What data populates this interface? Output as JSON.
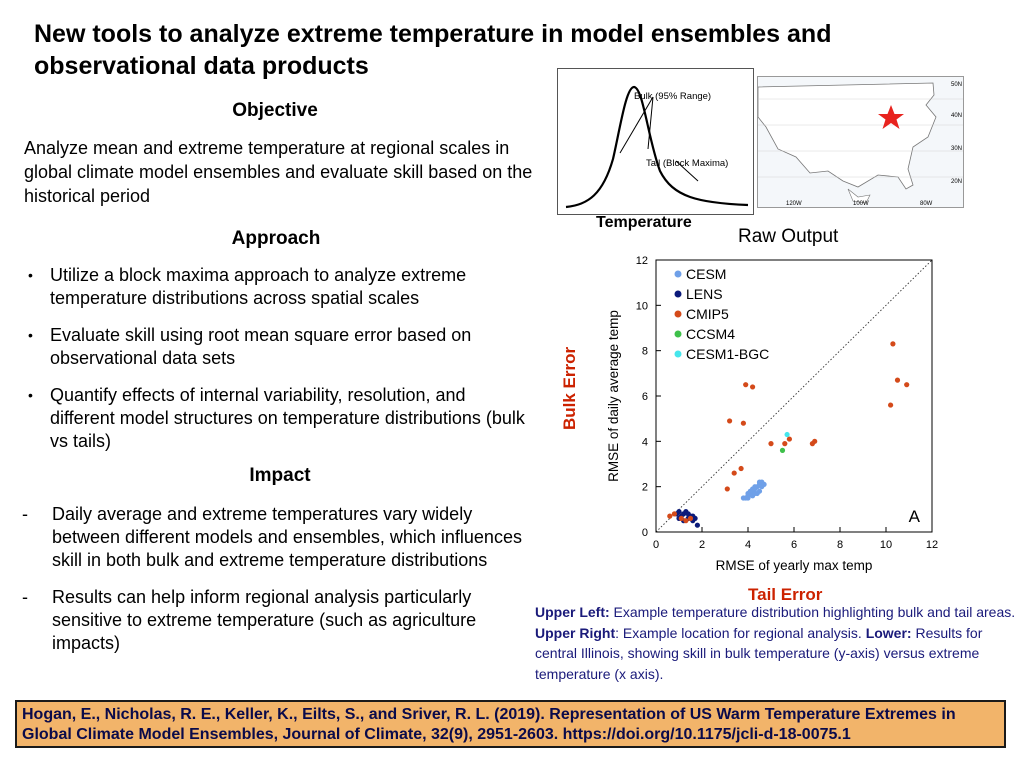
{
  "title": "New tools to analyze extreme temperature in model ensembles and observational data products",
  "objective": {
    "heading": "Objective",
    "text": "Analyze mean and extreme temperature at regional scales in global climate model ensembles and evaluate skill based on the historical period"
  },
  "approach": {
    "heading": "Approach",
    "bullets": [
      "Utilize a block maxima approach to analyze  extreme temperature distributions across spatial scales",
      "Evaluate skill using root mean square error based on observational data sets",
      "Quantify effects of internal variability, resolution, and different model structures on temperature distributions (bulk vs tails)"
    ]
  },
  "impact": {
    "heading": "Impact",
    "items": [
      "Daily average and extreme temperatures vary widely between different models and ensembles, which influences skill in both bulk and extreme temperature distributions",
      "Results can help inform regional analysis particularly sensitive to extreme temperature (such as agriculture impacts)"
    ]
  },
  "figure": {
    "distribution": {
      "label_bulk": "Bulk (95% Range)",
      "label_tail": "Tail (Block Maxima)",
      "xlabel": "Temperature"
    },
    "map": {
      "lat_labels": [
        "50N",
        "40N",
        "30N",
        "20N"
      ],
      "lon_labels": [
        "120W",
        "100W",
        "80W"
      ],
      "marker_color": "#e8231e"
    },
    "raw_output_label": "Raw Output",
    "bulk_error_label": "Bulk Error",
    "tail_error_label": "Tail Error",
    "panel_letter": "A"
  },
  "chart_data": {
    "type": "scatter",
    "xlabel": "RMSE of yearly max temp",
    "ylabel": "RMSE of daily average temp",
    "xlim": [
      0,
      12
    ],
    "ylim": [
      0,
      12
    ],
    "xticks": [
      0,
      2,
      4,
      6,
      8,
      10,
      12
    ],
    "yticks": [
      0,
      2,
      4,
      6,
      8,
      10,
      12
    ],
    "legend_position": "top-left",
    "reference_line": "1:1 dotted",
    "series": [
      {
        "name": "CESM",
        "color": "#6fa0e8",
        "points": [
          [
            3.9,
            1.5
          ],
          [
            4.0,
            1.6
          ],
          [
            4.1,
            1.7
          ],
          [
            4.2,
            1.8
          ],
          [
            4.3,
            1.9
          ],
          [
            4.4,
            2.0
          ],
          [
            4.5,
            2.1
          ],
          [
            4.6,
            2.2
          ],
          [
            4.0,
            1.5
          ],
          [
            4.2,
            1.6
          ],
          [
            4.3,
            1.7
          ],
          [
            4.5,
            1.8
          ],
          [
            4.6,
            2.0
          ],
          [
            4.1,
            1.8
          ],
          [
            4.4,
            1.7
          ],
          [
            3.8,
            1.5
          ],
          [
            4.7,
            2.1
          ],
          [
            4.5,
            2.2
          ],
          [
            4.3,
            2.0
          ],
          [
            4.2,
            1.9
          ],
          [
            4.0,
            1.7
          ]
        ]
      },
      {
        "name": "LENS",
        "color": "#0b1a7a",
        "points": [
          [
            0.9,
            0.8
          ],
          [
            1.0,
            0.9
          ],
          [
            1.1,
            0.7
          ],
          [
            1.2,
            0.8
          ],
          [
            1.3,
            0.9
          ],
          [
            1.4,
            0.6
          ],
          [
            1.5,
            0.7
          ],
          [
            1.6,
            0.5
          ],
          [
            1.7,
            0.6
          ],
          [
            1.8,
            0.3
          ],
          [
            1.0,
            0.6
          ],
          [
            1.2,
            0.5
          ],
          [
            1.4,
            0.8
          ],
          [
            1.6,
            0.7
          ]
        ]
      },
      {
        "name": "CMIP5",
        "color": "#d44a1a",
        "points": [
          [
            0.6,
            0.7
          ],
          [
            0.8,
            0.8
          ],
          [
            1.1,
            0.6
          ],
          [
            1.3,
            0.5
          ],
          [
            1.5,
            0.6
          ],
          [
            3.1,
            1.9
          ],
          [
            3.4,
            2.6
          ],
          [
            3.7,
            2.8
          ],
          [
            3.2,
            4.9
          ],
          [
            3.8,
            4.8
          ],
          [
            3.9,
            6.5
          ],
          [
            4.2,
            6.4
          ],
          [
            5.0,
            3.9
          ],
          [
            5.6,
            3.9
          ],
          [
            6.8,
            3.9
          ],
          [
            6.9,
            4.0
          ],
          [
            5.8,
            4.1
          ],
          [
            10.2,
            5.6
          ],
          [
            10.5,
            6.7
          ],
          [
            10.9,
            6.5
          ],
          [
            10.3,
            8.3
          ]
        ]
      },
      {
        "name": "CCSM4",
        "color": "#3ec04a",
        "points": [
          [
            5.5,
            3.6
          ]
        ]
      },
      {
        "name": "CESM1-BGC",
        "color": "#46e6ec",
        "points": [
          [
            5.7,
            4.3
          ]
        ]
      }
    ]
  },
  "caption": {
    "ul_label": "Upper Left:",
    "ul_text": " Example temperature distribution highlighting bulk and tail areas. ",
    "ur_label": "Upper Right",
    "ur_text": ": Example location for regional analysis. ",
    "lo_label": "Lower:",
    "lo_text": " Results for central Illinois, showing skill in bulk temperature (y-axis) versus extreme temperature (x axis)."
  },
  "citation": "Hogan, E., Nicholas, R. E., Keller, K., Eilts, S., and Sriver, R. L. (2019). Representation of US Warm Temperature Extremes in Global Climate Model Ensembles, Journal of Climate, 32(9), 2951-2603. https://doi.org/10.1175/jcli-d-18-0075.1"
}
